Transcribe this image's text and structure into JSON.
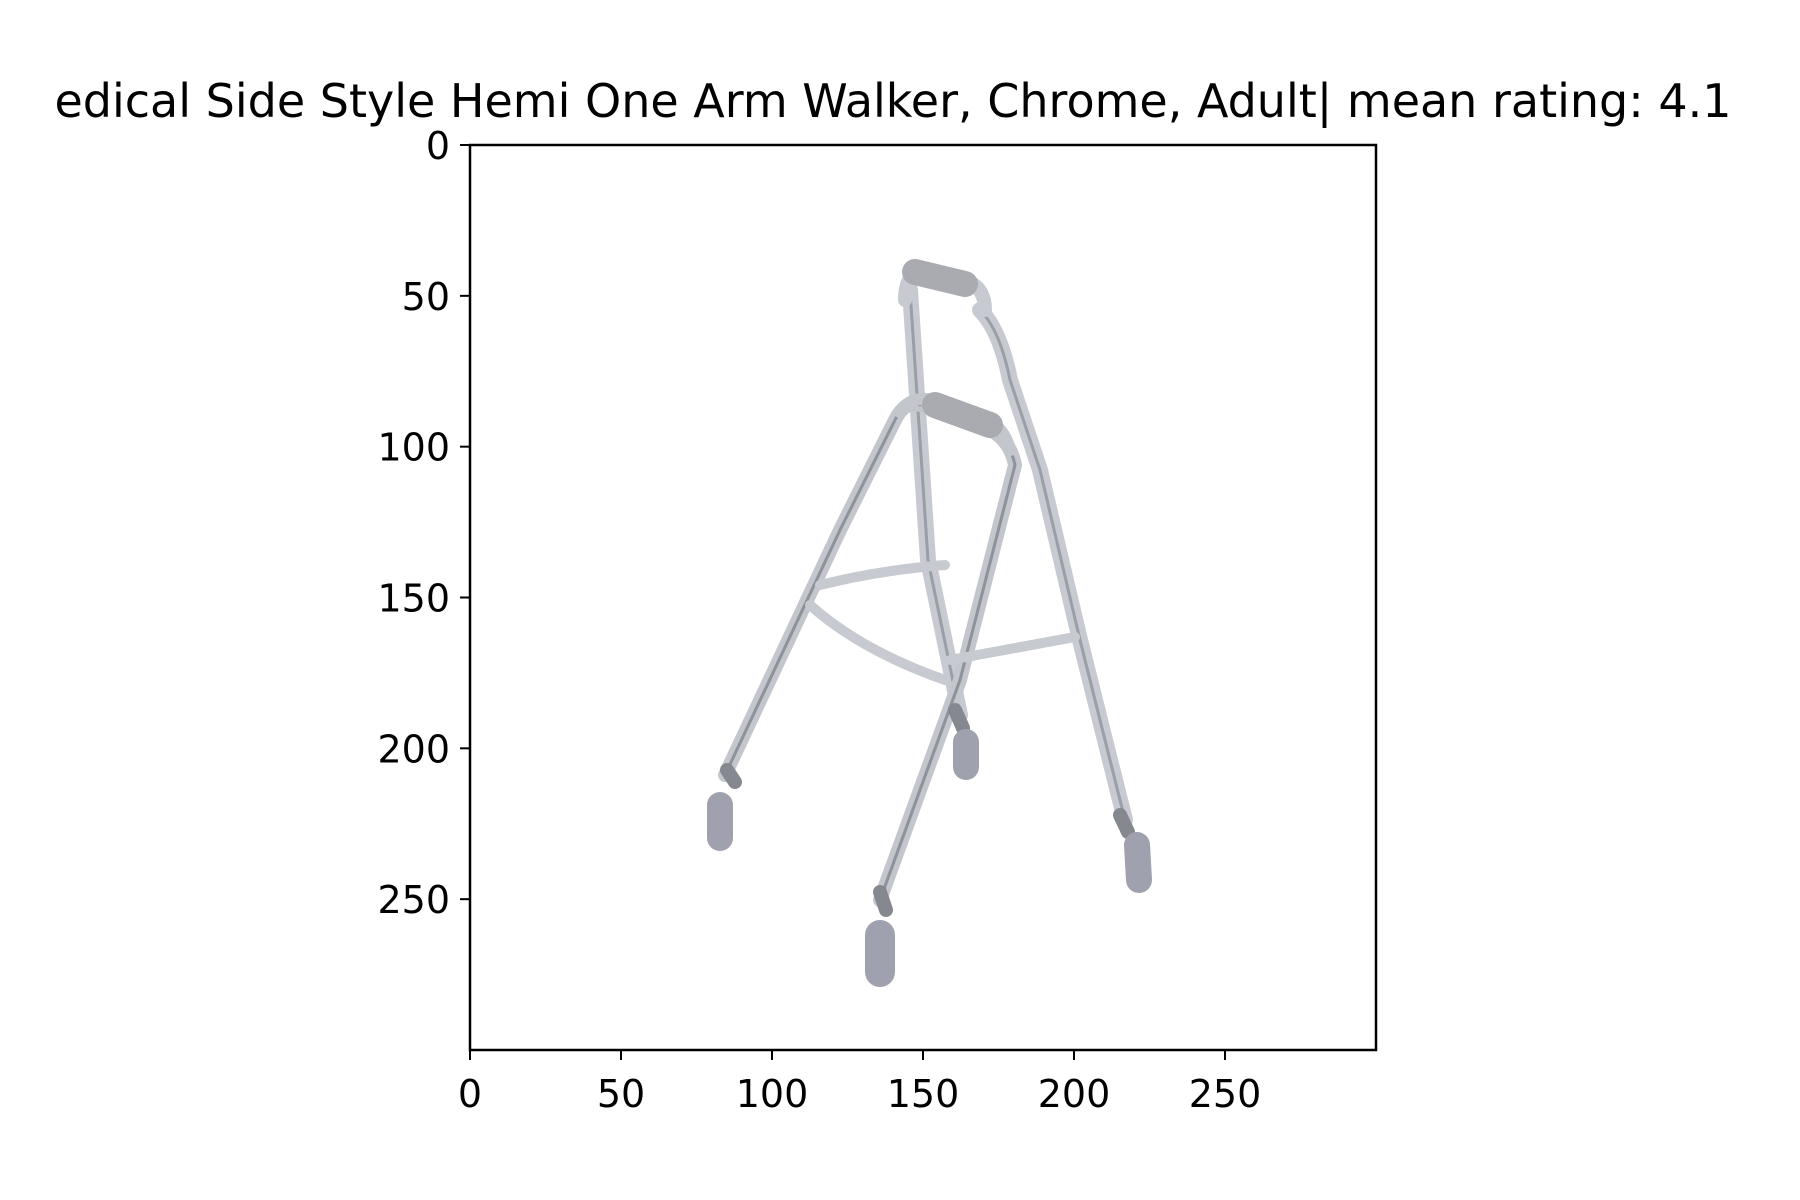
{
  "chart_data": {
    "type": "image",
    "title": "edical Side Style Hemi One Arm Walker, Chrome, Adult| mean rating: 4.1",
    "xlabel": "",
    "ylabel": "",
    "xlim": [
      0,
      300
    ],
    "ylim": [
      300,
      0
    ],
    "x_ticks": [
      0,
      50,
      100,
      150,
      200,
      250
    ],
    "y_ticks": [
      0,
      50,
      100,
      150,
      200,
      250
    ],
    "grid": false,
    "image_subject": "walker-icon",
    "colors": {
      "frame": "#b9bcc2",
      "frame_shadow": "#8e9299",
      "grip": "#a9abb1",
      "tip": "#9fa1ae",
      "background": "#ffffff"
    }
  }
}
